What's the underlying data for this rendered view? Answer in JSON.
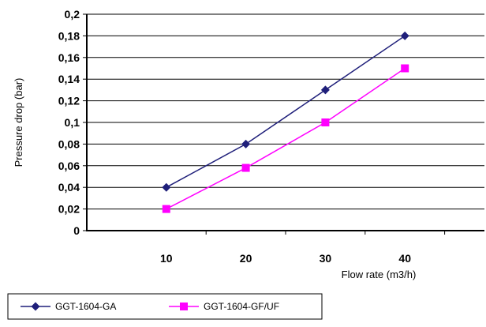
{
  "chart_data": {
    "type": "line",
    "x": [
      10,
      20,
      30,
      40
    ],
    "series": [
      {
        "name": "GGT-1604-GA",
        "values": [
          0.04,
          0.08,
          0.13,
          0.18
        ],
        "color": "#1f1f7a",
        "marker": "diamond"
      },
      {
        "name": "GGT-1604-GF/UF",
        "values": [
          0.02,
          0.058,
          0.1,
          0.15
        ],
        "color": "#ff00ff",
        "marker": "square"
      }
    ],
    "xlabel": "Flow rate (m3/h)",
    "ylabel": "Pressure drop (bar)",
    "x_tick_labels": [
      "10",
      "20",
      "30",
      "40"
    ],
    "y_tick_labels": [
      "0",
      "0,02",
      "0,04",
      "0,06",
      "0,08",
      "0,1",
      "0,12",
      "0,14",
      "0,16",
      "0,18",
      "0,2"
    ],
    "ylim": [
      0,
      0.2
    ],
    "xlim": [
      0,
      50
    ],
    "grid": "horizontal",
    "legend": "bottom"
  }
}
